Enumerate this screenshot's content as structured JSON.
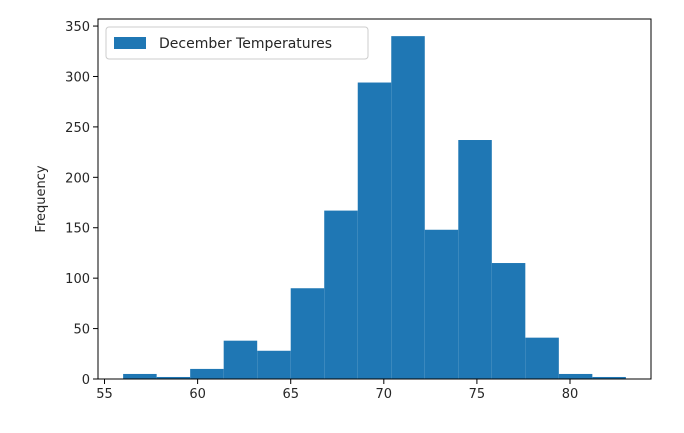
{
  "chart_data": {
    "type": "bar",
    "title": "",
    "xlabel": "",
    "ylabel": "Frequency",
    "xlim": [
      54.65,
      84.35
    ],
    "ylim": [
      0,
      357
    ],
    "xticks": [
      55,
      60,
      65,
      70,
      75,
      80
    ],
    "yticks": [
      0,
      50,
      100,
      150,
      200,
      250,
      300,
      350
    ],
    "bin_edges": [
      56.0,
      57.8,
      59.6,
      61.4,
      63.2,
      65.0,
      66.8,
      68.6,
      70.4,
      72.2,
      74.0,
      75.8,
      77.6,
      79.4,
      81.2,
      83.0
    ],
    "series": [
      {
        "name": "December Temperatures",
        "color": "#1f77b4",
        "values": [
          5,
          2,
          10,
          38,
          28,
          90,
          167,
          294,
          340,
          148,
          237,
          115,
          41,
          5,
          2
        ]
      }
    ],
    "legend_position": "upper-left",
    "grid": false
  }
}
